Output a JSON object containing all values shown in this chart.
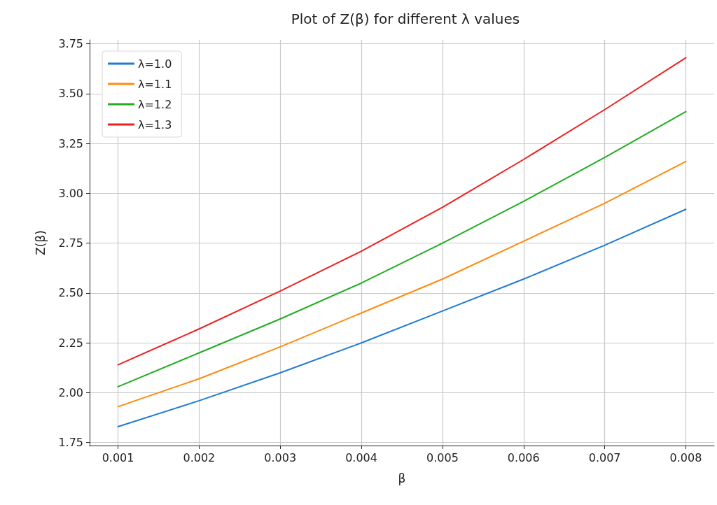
{
  "chart_data": {
    "type": "line",
    "title": "Plot of Z(β) for different λ values",
    "xlabel": "β",
    "ylabel": "Z(β)",
    "x": [
      0.001,
      0.002,
      0.003,
      0.004,
      0.005,
      0.006,
      0.007,
      0.008
    ],
    "series": [
      {
        "name": "λ=1.0",
        "color": "#1f7bd6",
        "values": [
          1.83,
          1.96,
          2.1,
          2.25,
          2.41,
          2.57,
          2.74,
          2.92
        ]
      },
      {
        "name": "λ=1.1",
        "color": "#ff8a0e",
        "values": [
          1.93,
          2.07,
          2.23,
          2.4,
          2.57,
          2.76,
          2.95,
          3.16
        ]
      },
      {
        "name": "λ=1.2",
        "color": "#22ac22",
        "values": [
          2.03,
          2.2,
          2.37,
          2.55,
          2.75,
          2.96,
          3.18,
          3.41
        ]
      },
      {
        "name": "λ=1.3",
        "color": "#ee2020",
        "values": [
          2.14,
          2.32,
          2.51,
          2.71,
          2.93,
          3.17,
          3.42,
          3.68
        ]
      }
    ],
    "xlim": [
      0.00065,
      0.00835
    ],
    "xticks": [
      0.001,
      0.002,
      0.003,
      0.004,
      0.005,
      0.006,
      0.007,
      0.008
    ],
    "ylim": [
      1.735,
      3.77
    ],
    "yticks": [
      {
        "value": 1.75,
        "label": "1.75"
      },
      {
        "value": 2,
        "label": "2.00"
      },
      {
        "value": 2.25,
        "label": "2.25"
      },
      {
        "value": 2.5,
        "label": "2.50"
      },
      {
        "value": 2.75,
        "label": "2.75"
      },
      {
        "value": 3,
        "label": "3.00"
      },
      {
        "value": 3.25,
        "label": "3.25"
      },
      {
        "value": 3.5,
        "label": "3.50"
      },
      {
        "value": 3.75,
        "label": "3.75"
      }
    ],
    "grid": true,
    "legend": "top left",
    "marker": "none",
    "line_style": "solid"
  }
}
